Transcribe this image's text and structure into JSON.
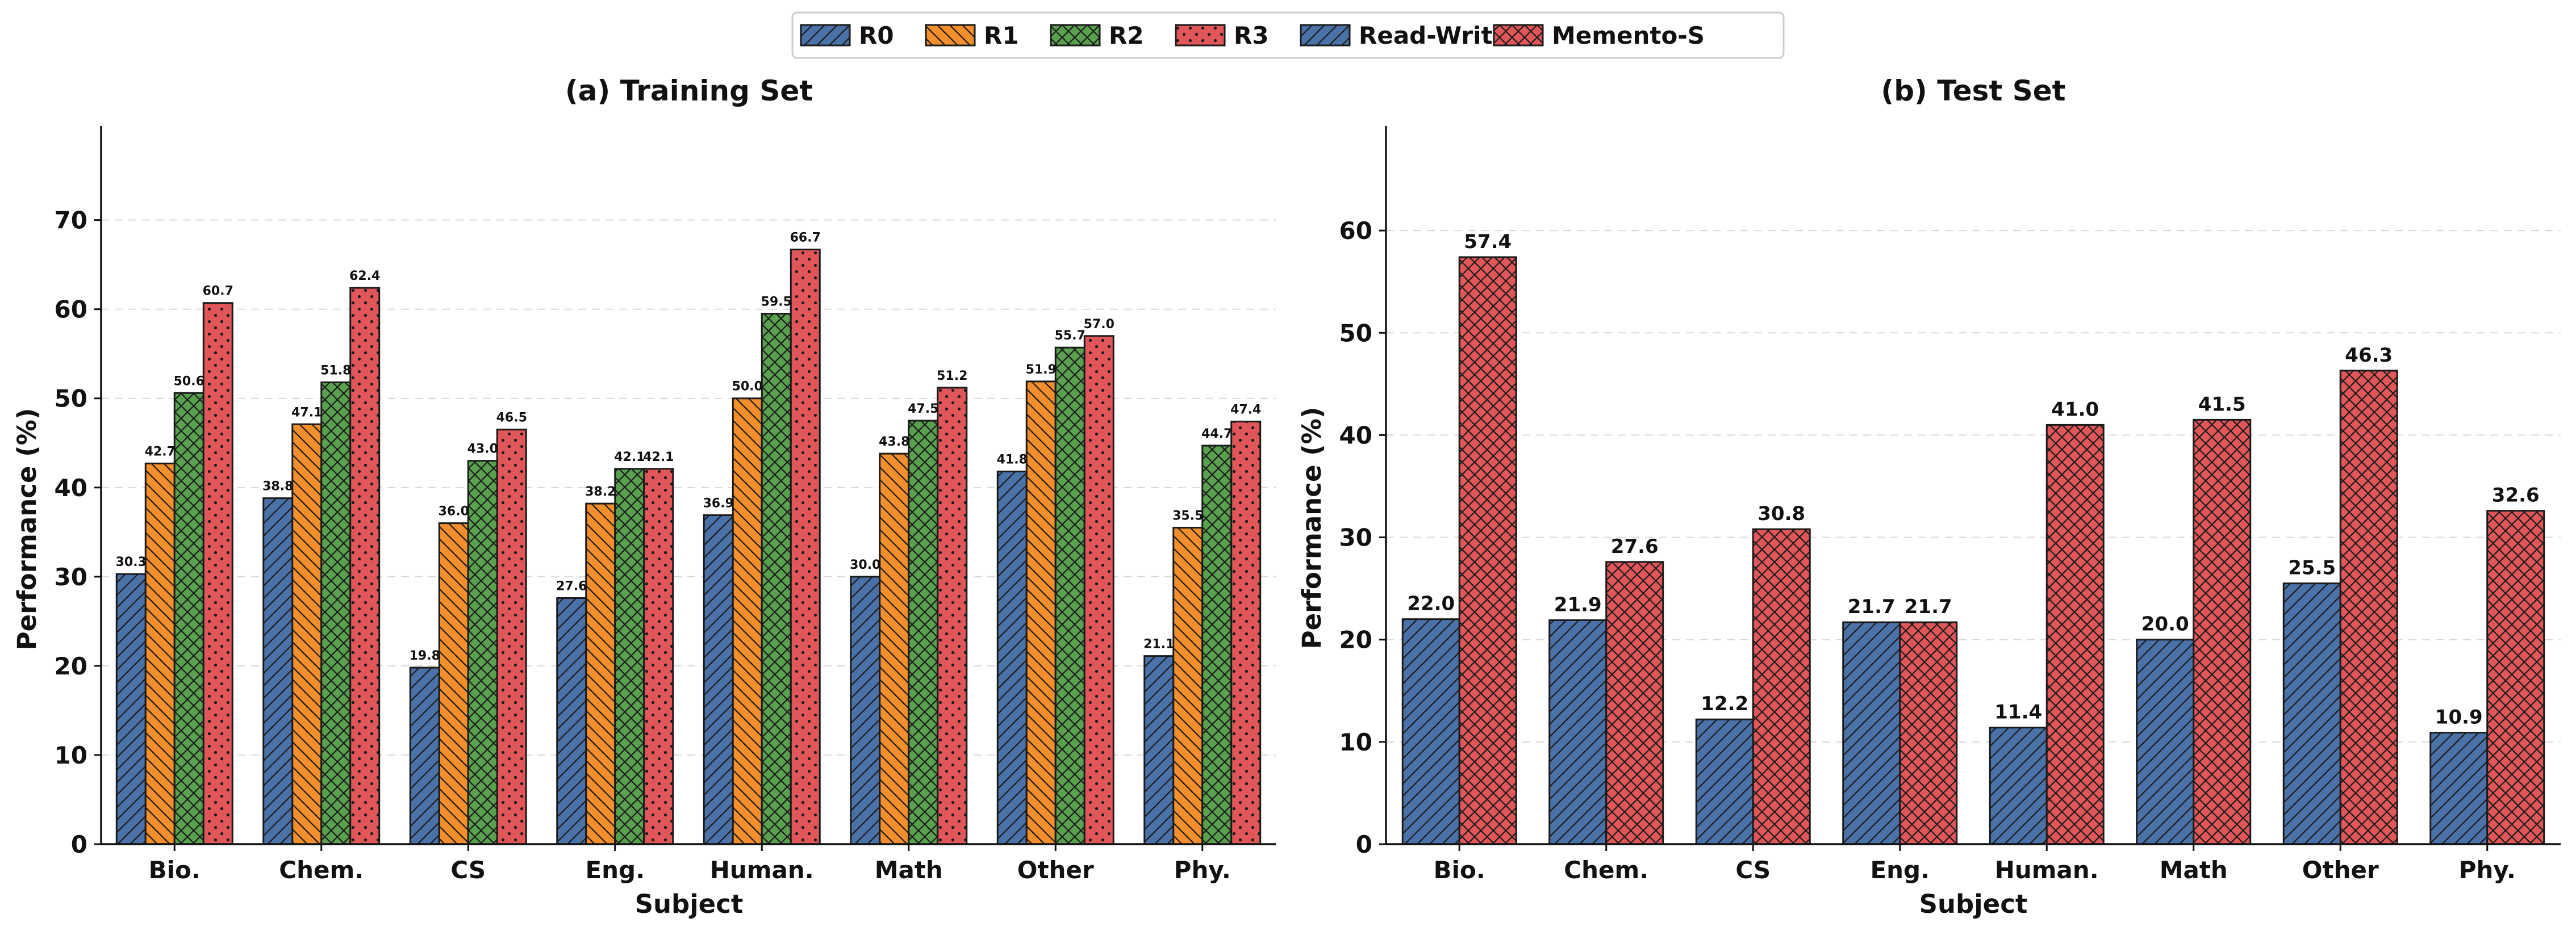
{
  "legend": {
    "items": [
      {
        "label": "R0",
        "color": "#4a72a8",
        "pattern": "hatch-fwd"
      },
      {
        "label": "R1",
        "color": "#f28e2b",
        "pattern": "hatch-back"
      },
      {
        "label": "R2",
        "color": "#59a14f",
        "pattern": "crosshatch"
      },
      {
        "label": "R3",
        "color": "#e15759",
        "pattern": "dots"
      },
      {
        "label": "Read-Write",
        "color": "#4a72a8",
        "pattern": "hatch-fwd"
      },
      {
        "label": "Memento-S",
        "color": "#e15759",
        "pattern": "crosshatch"
      }
    ]
  },
  "chart_data": [
    {
      "type": "bar",
      "title": "(a) Training Set",
      "xlabel": "Subject",
      "ylabel": "Performance (%)",
      "ylim": [
        0,
        78
      ],
      "yticks": [
        0,
        10,
        20,
        30,
        40,
        50,
        60,
        70
      ],
      "grid": true,
      "categories": [
        "Bio.",
        "Chem.",
        "CS",
        "Eng.",
        "Human.",
        "Math",
        "Other",
        "Phy."
      ],
      "series": [
        {
          "name": "R0",
          "color": "#4a72a8",
          "pattern": "hatch-fwd",
          "values": [
            30.3,
            38.8,
            19.8,
            27.6,
            36.9,
            30.0,
            41.8,
            21.1
          ],
          "labels": [
            "30.3",
            "38.8",
            "19.8",
            "27.6",
            "36.9",
            "30.0",
            "41.8",
            "21.1"
          ]
        },
        {
          "name": "R1",
          "color": "#f28e2b",
          "pattern": "hatch-back",
          "values": [
            42.7,
            47.1,
            36.0,
            38.2,
            50.0,
            43.8,
            51.9,
            35.5
          ],
          "labels": [
            "42.7",
            "47.1",
            "36.0",
            "38.2",
            "50.0",
            "43.8",
            "51.9",
            "35.5"
          ]
        },
        {
          "name": "R2",
          "color": "#59a14f",
          "pattern": "crosshatch",
          "values": [
            50.6,
            51.8,
            43.0,
            42.1,
            59.5,
            47.5,
            55.7,
            44.7
          ],
          "labels": [
            "50.6",
            "51.8",
            "43.0",
            "42.1",
            "59.5",
            "47.5",
            "55.7",
            "44.7"
          ]
        },
        {
          "name": "R3",
          "color": "#e15759",
          "pattern": "dots",
          "values": [
            60.7,
            62.4,
            46.5,
            42.1,
            66.7,
            51.2,
            57.0,
            47.4
          ],
          "labels": [
            "60.7",
            "62.4",
            "46.5",
            "42.1",
            "66.7",
            "51.2",
            "57.0",
            "47.4"
          ]
        }
      ]
    },
    {
      "type": "bar",
      "title": "(b) Test Set",
      "xlabel": "Subject",
      "ylabel": "Performance (%)",
      "ylim": [
        0,
        68
      ],
      "yticks": [
        0,
        10,
        20,
        30,
        40,
        50,
        60
      ],
      "grid": true,
      "categories": [
        "Bio.",
        "Chem.",
        "CS",
        "Eng.",
        "Human.",
        "Math",
        "Other",
        "Phy."
      ],
      "series": [
        {
          "name": "Read-Write",
          "color": "#4a72a8",
          "pattern": "hatch-fwd",
          "values": [
            22.0,
            21.9,
            12.2,
            21.7,
            11.4,
            20.0,
            25.5,
            10.9
          ],
          "labels": [
            "22.0",
            "21.9",
            "12.2",
            "21.7",
            "11.4",
            "20.0",
            "25.5",
            "10.9"
          ]
        },
        {
          "name": "Memento-S",
          "color": "#e15759",
          "pattern": "crosshatch",
          "values": [
            57.4,
            27.6,
            30.8,
            21.7,
            41.0,
            41.5,
            46.3,
            32.6
          ],
          "labels": [
            "57.4",
            "27.6",
            "30.8",
            "21.7",
            "41.0",
            "41.5",
            "46.3",
            "32.6"
          ]
        }
      ]
    }
  ]
}
